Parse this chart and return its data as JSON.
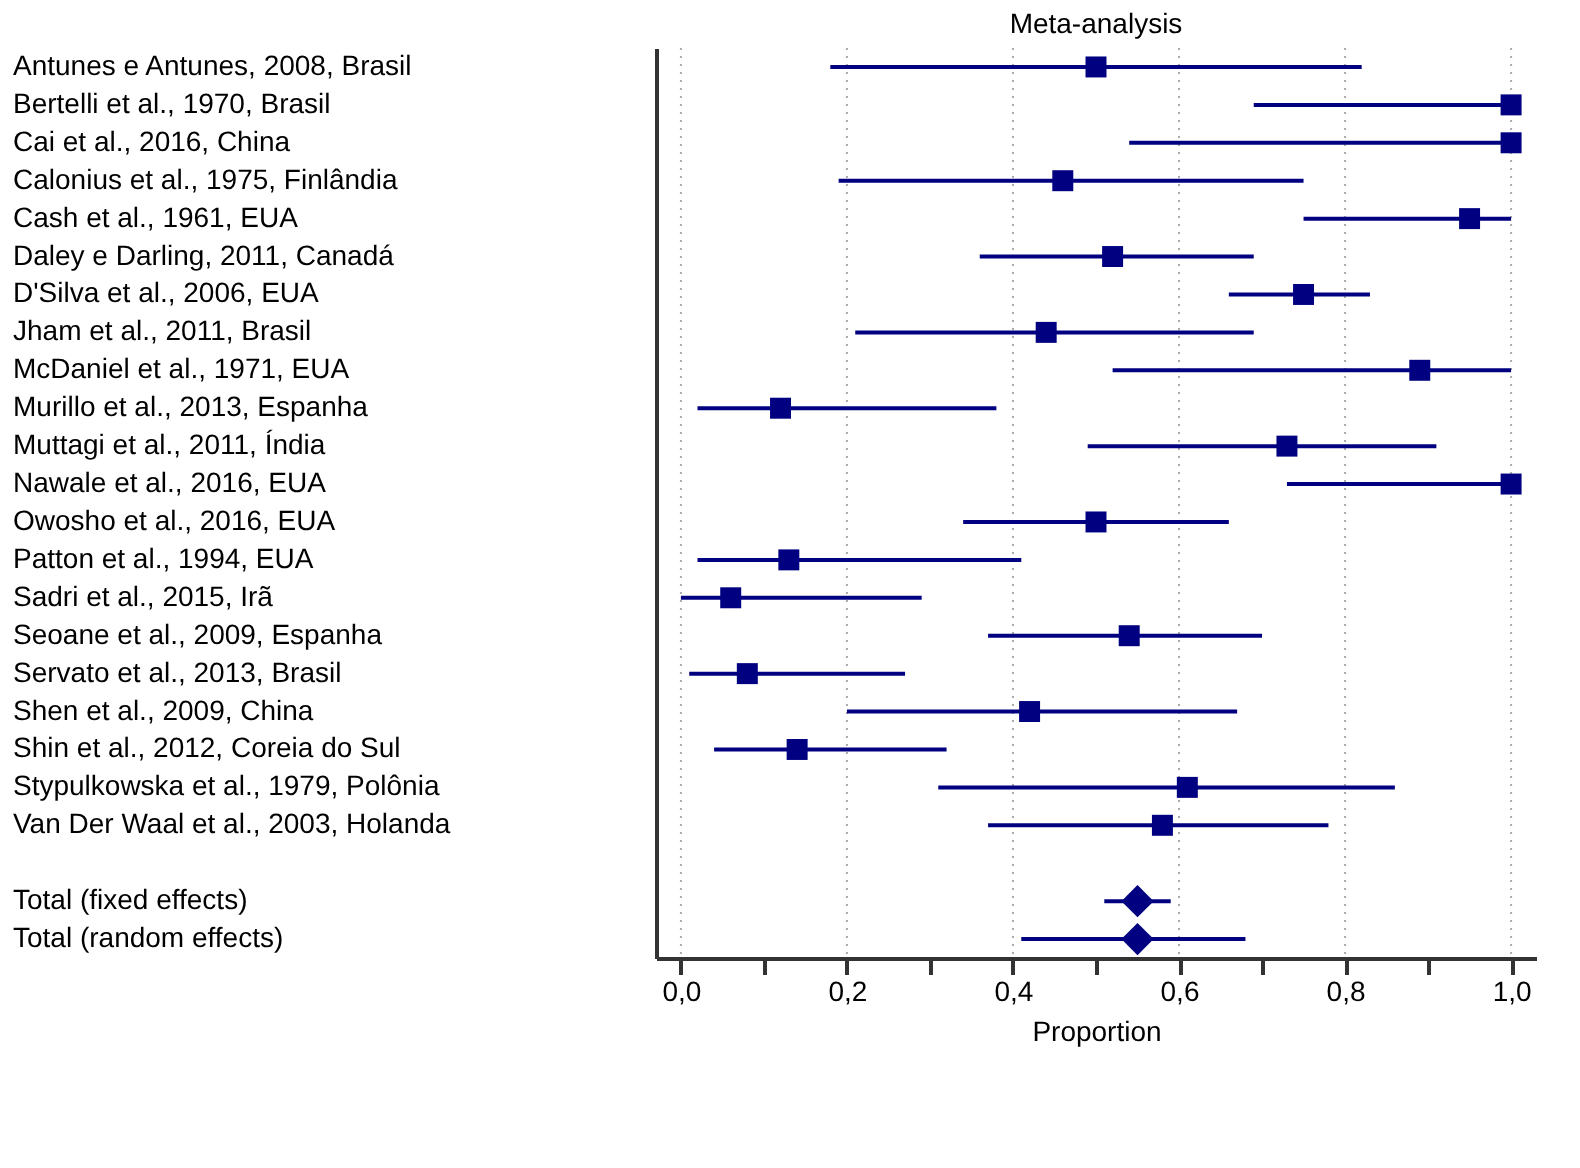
{
  "chart_data": {
    "type": "scatter",
    "orientation": "horizontal",
    "title": "Meta-analysis",
    "xlabel": "Proportion",
    "categories": [
      "Antunes e Antunes, 2008, Brasil",
      "Bertelli et al., 1970, Brasil",
      "Cai et al., 2016, China",
      "Calonius et al., 1975, Finlândia",
      "Cash et al., 1961, EUA",
      "Daley e Darling, 2011, Canadá",
      "D'Silva et al., 2006, EUA",
      "Jham et al., 2011, Brasil",
      "McDaniel et al., 1971, EUA",
      "Murillo et al., 2013, Espanha",
      "Muttagi et al., 2011, Índia",
      "Nawale et al., 2016, EUA",
      "Owosho et al., 2016, EUA",
      "Patton et al., 1994, EUA",
      "Sadri et al., 2015, Irã",
      "Seoane et al., 2009, Espanha",
      "Servato et al., 2013, Brasil",
      "Shen et al., 2009, China",
      "Shin et al., 2012, Coreia do Sul",
      "Stypulkowska et al., 1979, Polônia",
      "Van Der Waal et al., 2003, Holanda",
      null,
      "Total (fixed effects)",
      "Total (random effects)"
    ],
    "series": [
      {
        "color": "#000080",
        "marker": "square",
        "values": [
          0.5,
          1.0,
          1.0,
          0.46,
          0.95,
          0.52,
          0.75,
          0.44,
          0.89,
          0.12,
          0.73,
          1.0,
          0.5,
          0.13,
          0.06,
          0.54,
          0.08,
          0.42,
          0.14,
          0.61,
          0.58,
          null,
          null,
          null
        ],
        "errors": [
          [
            0.18,
            0.82
          ],
          [
            0.69,
            1.0
          ],
          [
            0.54,
            1.0
          ],
          [
            0.19,
            0.75
          ],
          [
            0.75,
            1.0
          ],
          [
            0.36,
            0.69
          ],
          [
            0.66,
            0.83
          ],
          [
            0.21,
            0.69
          ],
          [
            0.52,
            1.0
          ],
          [
            0.02,
            0.38
          ],
          [
            0.49,
            0.91
          ],
          [
            0.73,
            1.0
          ],
          [
            0.34,
            0.66
          ],
          [
            0.02,
            0.41
          ],
          [
            0.0,
            0.29
          ],
          [
            0.37,
            0.7
          ],
          [
            0.01,
            0.27
          ],
          [
            0.2,
            0.67
          ],
          [
            0.04,
            0.32
          ],
          [
            0.31,
            0.86
          ],
          [
            0.37,
            0.78
          ],
          null,
          null,
          null
        ]
      },
      {
        "color": "#000080",
        "marker": "diamond",
        "values": [
          null,
          null,
          null,
          null,
          null,
          null,
          null,
          null,
          null,
          null,
          null,
          null,
          null,
          null,
          null,
          null,
          null,
          null,
          null,
          null,
          null,
          null,
          0.55,
          0.55
        ],
        "errors": [
          null,
          null,
          null,
          null,
          null,
          null,
          null,
          null,
          null,
          null,
          null,
          null,
          null,
          null,
          null,
          null,
          null,
          null,
          null,
          null,
          null,
          null,
          [
            0.51,
            0.59
          ],
          [
            0.41,
            0.68
          ]
        ]
      }
    ],
    "xlim": [
      -0.03,
      1.03
    ],
    "xticks": [
      {
        "value": 0,
        "label": "0,0"
      },
      {
        "value": 0.1,
        "label": null
      },
      {
        "value": 0.2,
        "label": "0,2"
      },
      {
        "value": 0.3,
        "label": null
      },
      {
        "value": 0.4,
        "label": "0,4"
      },
      {
        "value": 0.5,
        "label": null
      },
      {
        "value": 0.6,
        "label": "0,6"
      },
      {
        "value": 0.7,
        "label": null
      },
      {
        "value": 0.8,
        "label": "0,8"
      },
      {
        "value": 0.9,
        "label": null
      },
      {
        "value": 1.0,
        "label": "1,0"
      }
    ],
    "grid": "x"
  }
}
